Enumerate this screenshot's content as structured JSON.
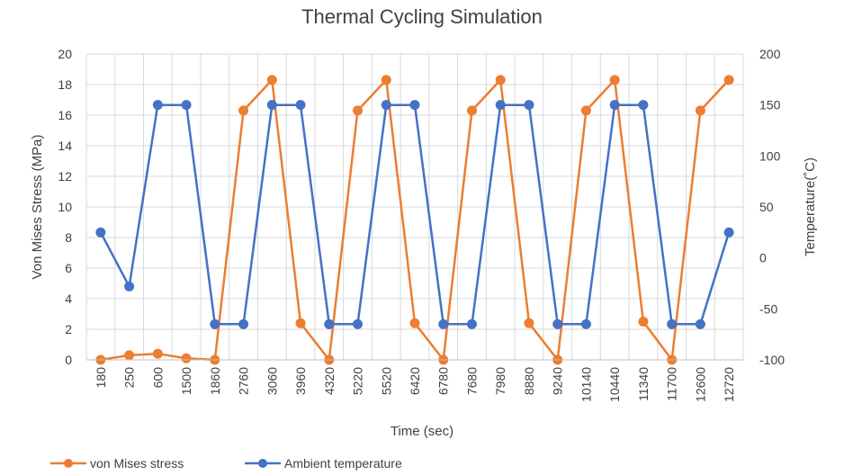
{
  "chart_data": {
    "type": "line",
    "title": "Thermal Cycling Simulation",
    "xlabel": "Time (sec)",
    "ylabel": "Von Mises Stress (MPa)",
    "y2label": "Temperature(˚C)",
    "categories": [
      "180",
      "250",
      "600",
      "1500",
      "1860",
      "2760",
      "3060",
      "3960",
      "4320",
      "5220",
      "5520",
      "6420",
      "6780",
      "7680",
      "7980",
      "8880",
      "9240",
      "10140",
      "10440",
      "11340",
      "11700",
      "12600",
      "12720"
    ],
    "ylim": [
      0,
      20
    ],
    "yticks": [
      "0",
      "2",
      "4",
      "6",
      "8",
      "10",
      "12",
      "14",
      "16",
      "18",
      "20"
    ],
    "y2lim": [
      -100,
      200
    ],
    "y2ticks": [
      "-100",
      "-50",
      "0",
      "50",
      "100",
      "150",
      "200"
    ],
    "grid": true,
    "legend_position": "bottom-left",
    "series": [
      {
        "name": "von Mises stress",
        "axis": "left",
        "color": "#ED7D31",
        "values": [
          0.0,
          0.3,
          0.4,
          0.1,
          0.0,
          16.3,
          18.3,
          2.4,
          0.0,
          16.3,
          18.3,
          2.4,
          0.0,
          16.3,
          18.3,
          2.4,
          0.0,
          16.3,
          18.3,
          2.5,
          0.0,
          16.3,
          18.3
        ]
      },
      {
        "name": "Ambient temperature",
        "axis": "right",
        "color": "#4472C4",
        "values": [
          25,
          -28,
          150,
          150,
          -65,
          -65,
          150,
          150,
          -65,
          -65,
          150,
          150,
          -65,
          -65,
          150,
          150,
          -65,
          -65,
          150,
          150,
          -65,
          -65,
          25
        ]
      }
    ]
  }
}
